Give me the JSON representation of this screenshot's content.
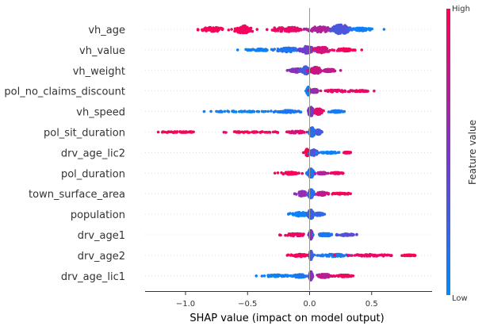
{
  "chart_data": {
    "type": "scatter",
    "subtype": "shap-beeswarm",
    "xlabel": "SHAP value (impact on model output)",
    "xlim": [
      -1.35,
      0.95
    ],
    "xticks": [
      {
        "value": -1.0,
        "label": "−1.0"
      },
      {
        "value": -0.5,
        "label": "−0.5"
      },
      {
        "value": 0.0,
        "label": "0.0"
      },
      {
        "value": 0.5,
        "label": "0.5"
      }
    ],
    "features": [
      {
        "name": "vh_age",
        "min": -0.9,
        "max": 0.6,
        "clusters": [
          {
            "x": -0.53,
            "spread": 0.07,
            "width": 0.4,
            "color": 0.97
          },
          {
            "x": -0.78,
            "spread": 0.1,
            "width": 0.2,
            "color": 0.95
          },
          {
            "x": -0.18,
            "spread": 0.12,
            "width": 0.24,
            "color": 0.92
          },
          {
            "x": 0.08,
            "spread": 0.09,
            "width": 0.28,
            "color": 0.7
          },
          {
            "x": 0.25,
            "spread": 0.07,
            "width": 0.48,
            "color": 0.3
          },
          {
            "x": 0.42,
            "spread": 0.07,
            "width": 0.16,
            "color": 0.06
          }
        ]
      },
      {
        "name": "vh_value",
        "min": -0.58,
        "max": 0.42,
        "clusters": [
          {
            "x": -0.4,
            "spread": 0.1,
            "width": 0.1,
            "color": 0.06
          },
          {
            "x": -0.18,
            "spread": 0.09,
            "width": 0.22,
            "color": 0.12
          },
          {
            "x": -0.02,
            "spread": 0.05,
            "width": 0.36,
            "color": 0.45
          },
          {
            "x": 0.1,
            "spread": 0.06,
            "width": 0.3,
            "color": 0.85
          },
          {
            "x": 0.28,
            "spread": 0.07,
            "width": 0.14,
            "color": 0.95
          }
        ]
      },
      {
        "name": "vh_weight",
        "min": -0.18,
        "max": 0.25,
        "clusters": [
          {
            "x": -0.1,
            "spread": 0.05,
            "width": 0.2,
            "color": 0.55
          },
          {
            "x": -0.03,
            "spread": 0.03,
            "width": 0.38,
            "color": 0.3
          },
          {
            "x": 0.05,
            "spread": 0.05,
            "width": 0.32,
            "color": 0.8
          },
          {
            "x": 0.16,
            "spread": 0.05,
            "width": 0.14,
            "color": 0.75
          }
        ]
      },
      {
        "name": "pol_no_claims_discount",
        "min": -0.03,
        "max": 0.52,
        "clusters": [
          {
            "x": -0.01,
            "spread": 0.01,
            "width": 0.42,
            "color": 0.04
          },
          {
            "x": 0.04,
            "spread": 0.03,
            "width": 0.18,
            "color": 0.6
          },
          {
            "x": 0.22,
            "spread": 0.12,
            "width": 0.1,
            "color": 0.9
          },
          {
            "x": 0.42,
            "spread": 0.06,
            "width": 0.06,
            "color": 0.92
          }
        ]
      },
      {
        "name": "vh_speed",
        "min": -0.85,
        "max": 0.28,
        "clusters": [
          {
            "x": -0.55,
            "spread": 0.22,
            "width": 0.05,
            "color": 0.05
          },
          {
            "x": -0.18,
            "spread": 0.08,
            "width": 0.12,
            "color": 0.12
          },
          {
            "x": 0.01,
            "spread": 0.02,
            "width": 0.44,
            "color": 0.5
          },
          {
            "x": 0.07,
            "spread": 0.03,
            "width": 0.3,
            "color": 0.9
          },
          {
            "x": 0.22,
            "spread": 0.04,
            "width": 0.1,
            "color": 0.1
          }
        ]
      },
      {
        "name": "pol_sit_duration",
        "min": -1.22,
        "max": 0.1,
        "clusters": [
          {
            "x": -1.05,
            "spread": 0.12,
            "width": 0.05,
            "color": 0.97
          },
          {
            "x": -0.45,
            "spread": 0.22,
            "width": 0.05,
            "color": 0.96
          },
          {
            "x": -0.1,
            "spread": 0.06,
            "width": 0.12,
            "color": 0.85
          },
          {
            "x": 0.02,
            "spread": 0.02,
            "width": 0.44,
            "color": 0.15
          },
          {
            "x": 0.07,
            "spread": 0.02,
            "width": 0.24,
            "color": 0.3
          }
        ]
      },
      {
        "name": "drv_age_lic2",
        "min": -0.05,
        "max": 0.33,
        "clusters": [
          {
            "x": -0.02,
            "spread": 0.01,
            "width": 0.36,
            "color": 0.97
          },
          {
            "x": 0.03,
            "spread": 0.03,
            "width": 0.3,
            "color": 0.3
          },
          {
            "x": 0.16,
            "spread": 0.06,
            "width": 0.08,
            "color": 0.05
          },
          {
            "x": 0.3,
            "spread": 0.02,
            "width": 0.04,
            "color": 0.95
          }
        ]
      },
      {
        "name": "pol_duration",
        "min": -0.28,
        "max": 0.27,
        "clusters": [
          {
            "x": -0.16,
            "spread": 0.08,
            "width": 0.12,
            "color": 0.95
          },
          {
            "x": 0.01,
            "spread": 0.02,
            "width": 0.44,
            "color": 0.15
          },
          {
            "x": 0.1,
            "spread": 0.04,
            "width": 0.1,
            "color": 0.7
          },
          {
            "x": 0.22,
            "spread": 0.04,
            "width": 0.08,
            "color": 0.95
          }
        ]
      },
      {
        "name": "town_surface_area",
        "min": -0.12,
        "max": 0.33,
        "clusters": [
          {
            "x": -0.06,
            "spread": 0.04,
            "width": 0.24,
            "color": 0.6
          },
          {
            "x": 0.01,
            "spread": 0.02,
            "width": 0.44,
            "color": 0.2
          },
          {
            "x": 0.1,
            "spread": 0.04,
            "width": 0.16,
            "color": 0.75
          },
          {
            "x": 0.25,
            "spread": 0.07,
            "width": 0.06,
            "color": 0.95
          }
        ]
      },
      {
        "name": "population",
        "min": -0.17,
        "max": 0.12,
        "clusters": [
          {
            "x": -0.08,
            "spread": 0.07,
            "width": 0.2,
            "color": 0.05
          },
          {
            "x": 0.01,
            "spread": 0.02,
            "width": 0.44,
            "color": 0.25
          },
          {
            "x": 0.07,
            "spread": 0.04,
            "width": 0.14,
            "color": 0.2
          }
        ]
      },
      {
        "name": "drv_age1",
        "min": -0.24,
        "max": 0.38,
        "clusters": [
          {
            "x": -0.12,
            "spread": 0.09,
            "width": 0.12,
            "color": 0.92
          },
          {
            "x": 0.01,
            "spread": 0.01,
            "width": 0.44,
            "color": 0.55
          },
          {
            "x": 0.12,
            "spread": 0.06,
            "width": 0.14,
            "color": 0.1
          },
          {
            "x": 0.3,
            "spread": 0.06,
            "width": 0.1,
            "color": 0.35
          }
        ]
      },
      {
        "name": "drv_age2",
        "min": -0.18,
        "max": 0.85,
        "clusters": [
          {
            "x": -0.08,
            "spread": 0.07,
            "width": 0.12,
            "color": 0.96
          },
          {
            "x": 0.01,
            "spread": 0.01,
            "width": 0.44,
            "color": 0.25
          },
          {
            "x": 0.2,
            "spread": 0.12,
            "width": 0.12,
            "color": 0.1
          },
          {
            "x": 0.5,
            "spread": 0.15,
            "width": 0.1,
            "color": 0.92
          },
          {
            "x": 0.8,
            "spread": 0.04,
            "width": 0.05,
            "color": 0.97
          }
        ]
      },
      {
        "name": "drv_age_lic1",
        "min": -0.43,
        "max": 0.35,
        "clusters": [
          {
            "x": -0.25,
            "spread": 0.12,
            "width": 0.1,
            "color": 0.05
          },
          {
            "x": -0.08,
            "spread": 0.05,
            "width": 0.16,
            "color": 0.1
          },
          {
            "x": 0.01,
            "spread": 0.01,
            "width": 0.44,
            "color": 0.55
          },
          {
            "x": 0.12,
            "spread": 0.06,
            "width": 0.18,
            "color": 0.75
          },
          {
            "x": 0.28,
            "spread": 0.06,
            "width": 0.1,
            "color": 0.95
          }
        ]
      }
    ],
    "colorbar": {
      "label": "Feature value",
      "high_label": "High",
      "low_label": "Low",
      "low_color": "#008afb",
      "mid_color": "#7b36c8",
      "high_color": "#ff0052"
    },
    "zero_line_color": "#999999",
    "grid": false
  }
}
